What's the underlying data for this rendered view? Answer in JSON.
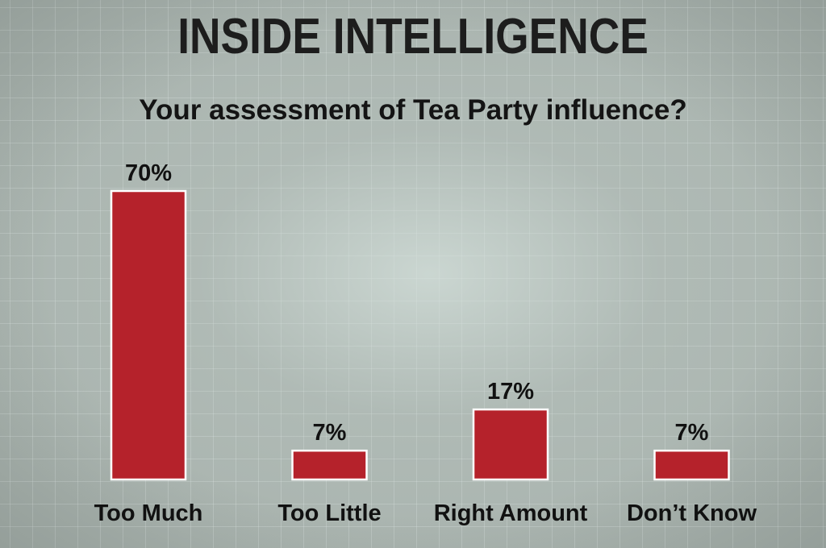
{
  "header": {
    "brand": "INSIDE INTELLIGENCE"
  },
  "chart_data": {
    "type": "bar",
    "title": "Your assessment of Tea Party influence?",
    "categories": [
      "Too Much",
      "Too Little",
      "Right Amount",
      "Don’t Know"
    ],
    "values": [
      70,
      7,
      17,
      7
    ],
    "value_labels": [
      "70%",
      "7%",
      "17%",
      "7%"
    ],
    "ylim": [
      0,
      70
    ],
    "xlabel": "",
    "ylabel": "",
    "grid": false,
    "legend": "none",
    "colors": {
      "bar": "#b5222b",
      "bar_outline": "#ffffff",
      "background": "#a9b3ae",
      "text": "#111111"
    }
  }
}
